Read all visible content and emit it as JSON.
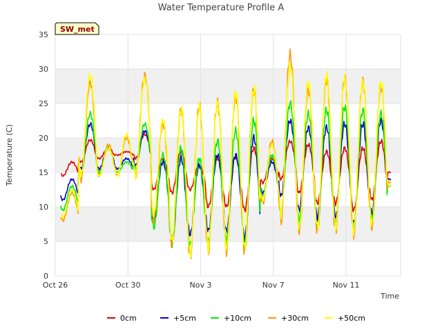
{
  "chart_data": {
    "type": "line",
    "title": "Water Temperature Profile A",
    "xlabel": "Time",
    "ylabel": "Temperature (C)",
    "ylim": [
      0,
      35
    ],
    "xlim": [
      "2023-10-26",
      "2023-11-14"
    ],
    "y_ticks": [
      0,
      5,
      10,
      15,
      20,
      25,
      30,
      35
    ],
    "x_ticks": [
      {
        "date": "2023-10-26",
        "label": "Oct 26"
      },
      {
        "date": "2023-10-30",
        "label": "Oct 30"
      },
      {
        "date": "2023-11-03",
        "label": "Nov 3"
      },
      {
        "date": "2023-11-07",
        "label": "Nov 7"
      },
      {
        "date": "2023-11-11",
        "label": "Nov 11"
      }
    ],
    "banded_background": true,
    "legend_position": "bottom",
    "annotation": "SW_met",
    "x": [
      "Oct 26",
      "Oct 27",
      "Oct 28",
      "Oct 29",
      "Oct 30",
      "Oct 31",
      "Nov 1",
      "Nov 2",
      "Nov 3",
      "Nov 4",
      "Nov 5",
      "Nov 6",
      "Nov 7",
      "Nov 8",
      "Nov 9",
      "Nov 10",
      "Nov 11",
      "Nov 12",
      "Nov 13"
    ],
    "series": [
      {
        "name": "0cm",
        "color": "#dd0000",
        "daily_min": [
          14.5,
          16.5,
          17.0,
          17.5,
          17.0,
          12.5,
          12.0,
          12.5,
          10.0,
          10.0,
          9.5,
          13.5,
          14.0,
          12.0,
          10.5,
          10.5,
          9.5,
          11.0,
          15.0
        ],
        "daily_max": [
          16.5,
          19.7,
          18.5,
          18.0,
          20.5,
          17.0,
          18.0,
          16.0,
          17.0,
          17.2,
          18.5,
          17.0,
          19.5,
          19.0,
          18.0,
          18.5,
          18.5,
          19.5,
          15.5
        ]
      },
      {
        "name": "+5cm",
        "color": "#0000cc",
        "daily_min": [
          11.0,
          15.5,
          15.5,
          15.5,
          16.0,
          8.0,
          5.0,
          6.0,
          6.5,
          6.5,
          5.5,
          12.0,
          11.5,
          9.5,
          8.5,
          8.5,
          7.5,
          9.0,
          14.0
        ],
        "daily_max": [
          14.0,
          22.0,
          18.5,
          17.0,
          21.0,
          16.5,
          17.0,
          16.0,
          17.5,
          17.5,
          20.0,
          16.5,
          22.5,
          21.5,
          21.5,
          22.0,
          22.0,
          22.5,
          14.5
        ]
      },
      {
        "name": "+10cm",
        "color": "#00ee00",
        "daily_min": [
          9.5,
          14.5,
          15.0,
          15.0,
          15.5,
          7.0,
          4.5,
          4.5,
          5.0,
          5.0,
          4.5,
          11.5,
          9.0,
          8.0,
          7.0,
          7.5,
          7.0,
          8.0,
          13.0
        ],
        "daily_max": [
          13.0,
          23.5,
          18.5,
          16.5,
          22.0,
          17.5,
          18.5,
          17.0,
          19.5,
          21.0,
          22.5,
          17.5,
          25.0,
          23.5,
          24.0,
          24.5,
          24.0,
          23.5,
          14.0
        ]
      },
      {
        "name": "+30cm",
        "color": "#ff9900",
        "daily_min": [
          8.0,
          14.0,
          14.5,
          14.5,
          14.5,
          8.0,
          4.5,
          2.7,
          3.5,
          3.5,
          3.5,
          10.5,
          8.0,
          6.5,
          6.5,
          6.5,
          6.0,
          7.0,
          13.5
        ],
        "daily_max": [
          12.0,
          28.0,
          19.0,
          20.0,
          29.0,
          22.0,
          24.0,
          24.5,
          25.0,
          26.0,
          27.0,
          19.5,
          32.0,
          27.0,
          28.5,
          28.5,
          28.0,
          27.5,
          15.0
        ]
      },
      {
        "name": "+50cm",
        "color": "#ffff00",
        "daily_min": [
          8.5,
          14.5,
          14.5,
          14.5,
          14.5,
          9.0,
          5.0,
          3.0,
          4.0,
          4.0,
          4.0,
          11.0,
          9.0,
          7.0,
          7.0,
          7.0,
          6.5,
          7.5,
          13.0
        ],
        "daily_max": [
          12.5,
          29.0,
          18.5,
          20.5,
          28.5,
          22.5,
          24.0,
          24.5,
          25.0,
          26.5,
          27.0,
          19.0,
          30.5,
          28.0,
          29.0,
          28.5,
          28.0,
          28.0,
          14.5
        ]
      }
    ]
  }
}
